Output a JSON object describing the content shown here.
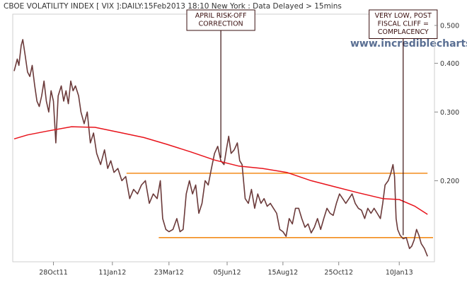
{
  "chart_data": {
    "type": "line",
    "title": "CBOE VOLATILITY INDEX [ VIX ]:DAILY:15Feb2013 18:10 New York : Data Delayed > 15mins",
    "watermark": "www.incrediblecharts.com",
    "y_scale": "log",
    "ylim": [
      0.125,
      0.53
    ],
    "xlim": [
      "2011-09-08",
      "2013-02-22"
    ],
    "y_ticks": [
      {
        "value": 0.5,
        "label": "0.500"
      },
      {
        "value": 0.4,
        "label": "0.400"
      },
      {
        "value": 0.3,
        "label": "0.300"
      },
      {
        "value": 0.2,
        "label": "0.200"
      }
    ],
    "x_ticks": [
      {
        "date": "2011-10-28",
        "label": "28Oct11"
      },
      {
        "date": "2012-01-11",
        "label": "11Jan12"
      },
      {
        "date": "2012-03-23",
        "label": "23Mar12"
      },
      {
        "date": "2012-06-05",
        "label": "05Jun12"
      },
      {
        "date": "2012-08-15",
        "label": "15Aug12"
      },
      {
        "date": "2012-10-25",
        "label": "25Oct12"
      },
      {
        "date": "2013-01-10",
        "label": "10Jan13"
      }
    ],
    "series": [
      {
        "color": "#6b3a3a",
        "points": [
          [
            "2011-09-08",
            0.382
          ],
          [
            "2011-09-12",
            0.41
          ],
          [
            "2011-09-14",
            0.395
          ],
          [
            "2011-09-17",
            0.445
          ],
          [
            "2011-09-19",
            0.46
          ],
          [
            "2011-09-22",
            0.42
          ],
          [
            "2011-09-25",
            0.38
          ],
          [
            "2011-09-28",
            0.37
          ],
          [
            "2011-10-01",
            0.395
          ],
          [
            "2011-10-04",
            0.352
          ],
          [
            "2011-10-07",
            0.32
          ],
          [
            "2011-10-10",
            0.31
          ],
          [
            "2011-10-13",
            0.33
          ],
          [
            "2011-10-16",
            0.36
          ],
          [
            "2011-10-19",
            0.32
          ],
          [
            "2011-10-22",
            0.3
          ],
          [
            "2011-10-25",
            0.34
          ],
          [
            "2011-10-28",
            0.32
          ],
          [
            "2011-10-31",
            0.25
          ],
          [
            "2011-11-03",
            0.33
          ],
          [
            "2011-11-07",
            0.35
          ],
          [
            "2011-11-10",
            0.32
          ],
          [
            "2011-11-13",
            0.34
          ],
          [
            "2011-11-16",
            0.315
          ],
          [
            "2011-11-19",
            0.36
          ],
          [
            "2011-11-22",
            0.34
          ],
          [
            "2011-11-25",
            0.35
          ],
          [
            "2011-11-29",
            0.33
          ],
          [
            "2011-12-02",
            0.3
          ],
          [
            "2011-12-06",
            0.28
          ],
          [
            "2011-12-10",
            0.3
          ],
          [
            "2011-12-14",
            0.25
          ],
          [
            "2011-12-18",
            0.265
          ],
          [
            "2011-12-22",
            0.235
          ],
          [
            "2011-12-27",
            0.22
          ],
          [
            "2012-01-01",
            0.24
          ],
          [
            "2012-01-05",
            0.215
          ],
          [
            "2012-01-09",
            0.225
          ],
          [
            "2012-01-13",
            0.21
          ],
          [
            "2012-01-18",
            0.215
          ],
          [
            "2012-01-23",
            0.2
          ],
          [
            "2012-01-28",
            0.205
          ],
          [
            "2012-02-02",
            0.18
          ],
          [
            "2012-02-07",
            0.19
          ],
          [
            "2012-02-12",
            0.185
          ],
          [
            "2012-02-17",
            0.195
          ],
          [
            "2012-02-22",
            0.2
          ],
          [
            "2012-02-27",
            0.175
          ],
          [
            "2012-03-03",
            0.185
          ],
          [
            "2012-03-08",
            0.18
          ],
          [
            "2012-03-12",
            0.2
          ],
          [
            "2012-03-15",
            0.16
          ],
          [
            "2012-03-19",
            0.15
          ],
          [
            "2012-03-23",
            0.148
          ],
          [
            "2012-03-28",
            0.15
          ],
          [
            "2012-04-02",
            0.16
          ],
          [
            "2012-04-06",
            0.148
          ],
          [
            "2012-04-10",
            0.15
          ],
          [
            "2012-04-14",
            0.185
          ],
          [
            "2012-04-18",
            0.2
          ],
          [
            "2012-04-22",
            0.185
          ],
          [
            "2012-04-26",
            0.195
          ],
          [
            "2012-04-30",
            0.165
          ],
          [
            "2012-05-04",
            0.175
          ],
          [
            "2012-05-08",
            0.2
          ],
          [
            "2012-05-12",
            0.195
          ],
          [
            "2012-05-16",
            0.215
          ],
          [
            "2012-05-20",
            0.235
          ],
          [
            "2012-05-24",
            0.245
          ],
          [
            "2012-05-28",
            0.225
          ],
          [
            "2012-06-01",
            0.22
          ],
          [
            "2012-06-04",
            0.24
          ],
          [
            "2012-06-07",
            0.26
          ],
          [
            "2012-06-10",
            0.235
          ],
          [
            "2012-06-14",
            0.24
          ],
          [
            "2012-06-18",
            0.25
          ],
          [
            "2012-06-21",
            0.225
          ],
          [
            "2012-06-24",
            0.22
          ],
          [
            "2012-06-28",
            0.18
          ],
          [
            "2012-07-02",
            0.175
          ],
          [
            "2012-07-06",
            0.19
          ],
          [
            "2012-07-10",
            0.17
          ],
          [
            "2012-07-14",
            0.185
          ],
          [
            "2012-07-18",
            0.175
          ],
          [
            "2012-07-22",
            0.18
          ],
          [
            "2012-07-26",
            0.172
          ],
          [
            "2012-07-30",
            0.175
          ],
          [
            "2012-08-03",
            0.17
          ],
          [
            "2012-08-07",
            0.165
          ],
          [
            "2012-08-11",
            0.15
          ],
          [
            "2012-08-15",
            0.148
          ],
          [
            "2012-08-19",
            0.144
          ],
          [
            "2012-08-23",
            0.16
          ],
          [
            "2012-08-27",
            0.155
          ],
          [
            "2012-08-31",
            0.17
          ],
          [
            "2012-09-04",
            0.17
          ],
          [
            "2012-09-08",
            0.16
          ],
          [
            "2012-09-12",
            0.152
          ],
          [
            "2012-09-16",
            0.155
          ],
          [
            "2012-09-20",
            0.147
          ],
          [
            "2012-09-24",
            0.152
          ],
          [
            "2012-09-28",
            0.16
          ],
          [
            "2012-10-02",
            0.15
          ],
          [
            "2012-10-06",
            0.16
          ],
          [
            "2012-10-10",
            0.17
          ],
          [
            "2012-10-14",
            0.165
          ],
          [
            "2012-10-18",
            0.163
          ],
          [
            "2012-10-22",
            0.175
          ],
          [
            "2012-10-26",
            0.185
          ],
          [
            "2012-10-30",
            0.18
          ],
          [
            "2012-11-03",
            0.175
          ],
          [
            "2012-11-07",
            0.18
          ],
          [
            "2012-11-11",
            0.185
          ],
          [
            "2012-11-15",
            0.175
          ],
          [
            "2012-11-19",
            0.17
          ],
          [
            "2012-11-23",
            0.168
          ],
          [
            "2012-11-27",
            0.16
          ],
          [
            "2012-12-01",
            0.17
          ],
          [
            "2012-12-05",
            0.165
          ],
          [
            "2012-12-09",
            0.17
          ],
          [
            "2012-12-13",
            0.165
          ],
          [
            "2012-12-17",
            0.16
          ],
          [
            "2012-12-20",
            0.175
          ],
          [
            "2012-12-23",
            0.195
          ],
          [
            "2012-12-27",
            0.2
          ],
          [
            "2012-12-30",
            0.208
          ],
          [
            "2013-01-02",
            0.22
          ],
          [
            "2013-01-04",
            0.205
          ],
          [
            "2013-01-06",
            0.16
          ],
          [
            "2013-01-08",
            0.15
          ],
          [
            "2013-01-11",
            0.145
          ],
          [
            "2013-01-15",
            0.142
          ],
          [
            "2013-01-19",
            0.143
          ],
          [
            "2013-01-23",
            0.134
          ],
          [
            "2013-01-26",
            0.136
          ],
          [
            "2013-01-29",
            0.141
          ],
          [
            "2013-02-01",
            0.15
          ],
          [
            "2013-02-04",
            0.145
          ],
          [
            "2013-02-07",
            0.138
          ],
          [
            "2013-02-11",
            0.134
          ],
          [
            "2013-02-15",
            0.128
          ]
        ]
      },
      {
        "color": "#e8131b",
        "points": [
          [
            "2011-09-08",
            0.256
          ],
          [
            "2011-09-25",
            0.262
          ],
          [
            "2011-10-20",
            0.268
          ],
          [
            "2011-11-20",
            0.275
          ],
          [
            "2011-12-20",
            0.274
          ],
          [
            "2012-01-20",
            0.266
          ],
          [
            "2012-02-20",
            0.258
          ],
          [
            "2012-03-20",
            0.248
          ],
          [
            "2012-04-20",
            0.237
          ],
          [
            "2012-05-20",
            0.226
          ],
          [
            "2012-06-20",
            0.218
          ],
          [
            "2012-07-20",
            0.215
          ],
          [
            "2012-08-20",
            0.21
          ],
          [
            "2012-09-20",
            0.2
          ],
          [
            "2012-10-20",
            0.193
          ],
          [
            "2012-11-20",
            0.186
          ],
          [
            "2012-12-20",
            0.18
          ],
          [
            "2013-01-10",
            0.179
          ],
          [
            "2013-01-30",
            0.172
          ],
          [
            "2013-02-15",
            0.164
          ]
        ]
      }
    ],
    "horizontal_lines": [
      {
        "value": 0.209,
        "from": "2012-01-29",
        "to": "2013-02-15",
        "color": "#f28c1c"
      },
      {
        "value": 0.143,
        "from": "2012-03-10",
        "to": "2013-02-22",
        "color": "#f28c1c"
      }
    ],
    "annotations": [
      {
        "lines": [
          "APRIL RISK-OFF",
          "CORRECTION"
        ],
        "date": "2012-05-28",
        "value_to": 0.229
      },
      {
        "lines": [
          "VERY LOW, POST",
          "FISCAL CLIFF =",
          "COMPLACENCY"
        ],
        "date": "2013-01-15",
        "value_to": 0.145
      }
    ]
  }
}
